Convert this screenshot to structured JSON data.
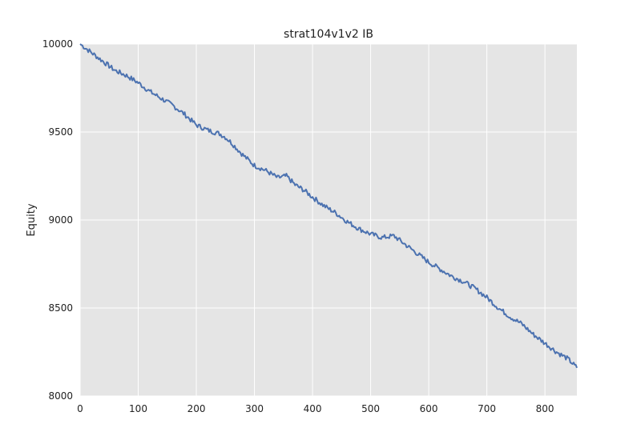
{
  "chart_data": {
    "type": "line",
    "title": "strat104v1v2 IB",
    "xlabel": "",
    "ylabel": "Equity",
    "xlim": [
      0,
      855
    ],
    "ylim": [
      8000,
      10000
    ],
    "xticks": [
      0,
      100,
      200,
      300,
      400,
      500,
      600,
      700,
      800
    ],
    "yticks": [
      8000,
      8500,
      9000,
      9500,
      10000
    ],
    "xtick_labels": [
      "0",
      "100",
      "200",
      "300",
      "400",
      "500",
      "600",
      "700",
      "800"
    ],
    "ytick_labels": [
      "8000",
      "8500",
      "9000",
      "9500",
      "10000"
    ],
    "grid": true,
    "legend": "none",
    "colors": {
      "background": "#e5e5e5",
      "grid": "#ffffff",
      "line": "#4c72b0"
    },
    "series": [
      {
        "x": [
          0,
          20,
          40,
          60,
          80,
          100,
          120,
          140,
          160,
          180,
          200,
          220,
          240,
          250,
          260,
          280,
          300,
          320,
          340,
          355,
          370,
          385,
          400,
          420,
          440,
          460,
          480,
          500,
          520,
          540,
          560,
          580,
          600,
          620,
          640,
          660,
          680,
          700,
          720,
          740,
          760,
          780,
          800,
          820,
          840,
          855
        ],
        "values": [
          10000,
          9950,
          9900,
          9850,
          9820,
          9780,
          9730,
          9690,
          9650,
          9600,
          9540,
          9510,
          9490,
          9470,
          9440,
          9370,
          9310,
          9280,
          9240,
          9250,
          9200,
          9170,
          9130,
          9080,
          9040,
          8990,
          8950,
          8920,
          8900,
          8910,
          8860,
          8810,
          8760,
          8720,
          8680,
          8650,
          8610,
          8560,
          8500,
          8450,
          8410,
          8350,
          8300,
          8250,
          8210,
          8160
        ]
      }
    ]
  }
}
